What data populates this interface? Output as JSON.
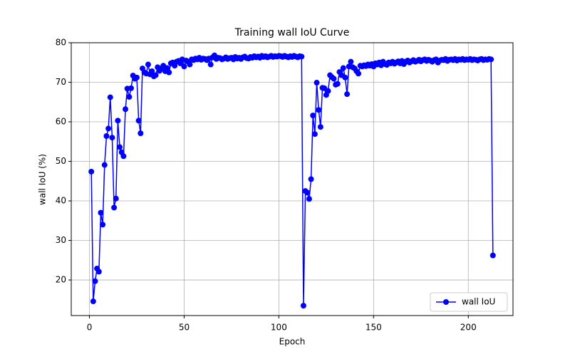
{
  "chart_data": {
    "type": "line",
    "title": "Training wall IoU Curve",
    "x_label": "Epoch",
    "y_label": "wall IoU (%)",
    "x": [
      1,
      2,
      3,
      4,
      5,
      6,
      7,
      8,
      9,
      10,
      11,
      12,
      13,
      14,
      15,
      16,
      17,
      18,
      19,
      20,
      21,
      22,
      23,
      24,
      25,
      26,
      27,
      28,
      29,
      30,
      31,
      32,
      33,
      34,
      35,
      36,
      37,
      38,
      39,
      40,
      41,
      42,
      43,
      44,
      45,
      46,
      47,
      48,
      49,
      50,
      51,
      52,
      53,
      54,
      55,
      56,
      57,
      58,
      59,
      60,
      61,
      62,
      63,
      64,
      65,
      66,
      67,
      68,
      69,
      70,
      71,
      72,
      73,
      74,
      75,
      76,
      77,
      78,
      79,
      80,
      81,
      82,
      83,
      84,
      85,
      86,
      87,
      88,
      89,
      90,
      91,
      92,
      93,
      94,
      95,
      96,
      97,
      98,
      99,
      100,
      101,
      102,
      103,
      104,
      105,
      106,
      107,
      108,
      109,
      110,
      111,
      112,
      113,
      114,
      115,
      116,
      117,
      118,
      119,
      120,
      121,
      122,
      123,
      124,
      125,
      126,
      127,
      128,
      129,
      130,
      131,
      132,
      133,
      134,
      135,
      136,
      137,
      138,
      139,
      140,
      141,
      142,
      143,
      144,
      145,
      146,
      147,
      148,
      149,
      150,
      151,
      152,
      153,
      154,
      155,
      156,
      157,
      158,
      159,
      160,
      161,
      162,
      163,
      164,
      165,
      166,
      167,
      168,
      169,
      170,
      171,
      172,
      173,
      174,
      175,
      176,
      177,
      178,
      179,
      180,
      181,
      182,
      183,
      184,
      185,
      186,
      187,
      188,
      189,
      190,
      191,
      192,
      193,
      194,
      195,
      196,
      197,
      198,
      199,
      200,
      201,
      202,
      203,
      204,
      205,
      206,
      207,
      208,
      209,
      210,
      211,
      212,
      213
    ],
    "series": [
      {
        "name": "wall IoU",
        "color": "#0000ff",
        "values": [
          47.4,
          14.6,
          19.7,
          22.9,
          22.1,
          37.0,
          34.0,
          49.1,
          56.4,
          58.3,
          66.2,
          56.0,
          38.3,
          40.6,
          60.3,
          53.6,
          52.3,
          51.3,
          63.2,
          68.4,
          66.3,
          68.5,
          71.7,
          70.9,
          71.2,
          60.3,
          57.1,
          73.5,
          72.5,
          72.2,
          74.5,
          72.0,
          72.8,
          71.5,
          71.8,
          73.8,
          72.9,
          73.5,
          74.2,
          72.8,
          73.6,
          72.5,
          74.8,
          75.0,
          74.2,
          75.2,
          75.4,
          74.8,
          75.8,
          74.0,
          75.5,
          75.2,
          74.5,
          75.8,
          75.6,
          76.0,
          75.8,
          76.2,
          75.7,
          76.0,
          75.9,
          75.6,
          76.0,
          74.5,
          76.3,
          76.8,
          75.9,
          76.2,
          76.1,
          75.8,
          76.0,
          76.3,
          75.9,
          76.1,
          76.2,
          75.8,
          76.4,
          76.0,
          76.2,
          75.9,
          76.3,
          76.5,
          76.1,
          76.0,
          76.4,
          76.2,
          76.6,
          76.3,
          76.5,
          76.2,
          76.7,
          76.4,
          76.6,
          76.3,
          76.5,
          76.7,
          76.4,
          76.6,
          76.5,
          76.7,
          76.6,
          76.4,
          76.7,
          76.5,
          76.3,
          76.6,
          76.4,
          76.7,
          76.5,
          76.3,
          76.6,
          76.5,
          13.5,
          42.5,
          42.1,
          40.5,
          45.5,
          61.6,
          56.9,
          69.9,
          63.0,
          58.7,
          68.6,
          68.5,
          66.8,
          67.8,
          71.8,
          71.3,
          70.9,
          69.4,
          69.6,
          72.6,
          71.8,
          73.6,
          71.2,
          67.0,
          74.0,
          75.2,
          73.8,
          73.5,
          72.8,
          72.2,
          74.2,
          74.0,
          74.3,
          74.1,
          74.5,
          74.2,
          74.6,
          74.0,
          74.8,
          74.5,
          75.0,
          74.3,
          75.2,
          74.6,
          74.4,
          75.0,
          74.8,
          75.2,
          74.7,
          75.0,
          75.3,
          74.8,
          75.4,
          74.6,
          75.2,
          75.5,
          75.0,
          75.3,
          75.6,
          75.2,
          75.4,
          75.7,
          75.3,
          75.6,
          75.8,
          75.4,
          75.7,
          75.5,
          75.2,
          75.6,
          75.8,
          75.0,
          75.5,
          75.7,
          75.6,
          75.9,
          75.4,
          75.7,
          75.8,
          75.6,
          75.9,
          75.5,
          75.8,
          75.7,
          75.9,
          75.6,
          75.8,
          75.7,
          75.9,
          75.6,
          75.8,
          75.7,
          75.5,
          75.8,
          75.9,
          75.6,
          75.8,
          75.7,
          75.9,
          75.8,
          26.2
        ]
      }
    ],
    "xlim": [
      -9.6,
      223.6
    ],
    "ylim": [
      11.0,
      80.0
    ],
    "xticks": [
      0,
      50,
      100,
      150,
      200
    ],
    "yticks": [
      20,
      30,
      40,
      50,
      60,
      70,
      80
    ],
    "grid": true,
    "legend_position": "lower right"
  }
}
